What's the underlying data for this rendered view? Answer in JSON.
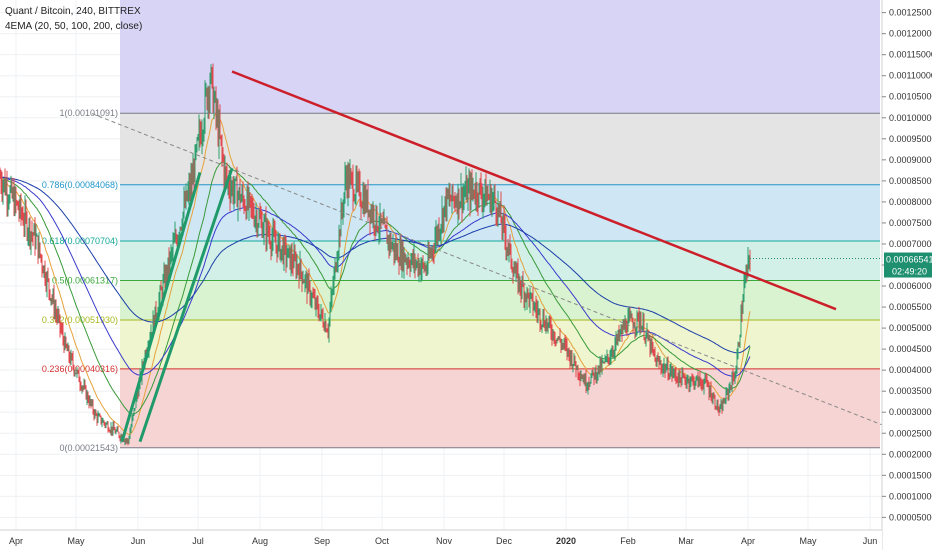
{
  "header": {
    "title": "Quant / Bitcoin, 240, BITTREX",
    "indicator": "4EMA (20, 50, 100, 200, close)"
  },
  "colors": {
    "candle_up": "#2e9e6e",
    "candle_down": "#e0484d",
    "trend_red": "#cc1f2a",
    "trend_green": "#1f9a6a",
    "ema20": "#e6a23c",
    "ema50": "#3a9a3a",
    "ema100": "#3a3acc",
    "ema200": "#1a3fa8",
    "price_tag": "#1e8f6f"
  },
  "price_tag": {
    "value": "0.00066541",
    "countdown": "02:49:20"
  },
  "chart_data": {
    "type": "candlestick",
    "ylim": [
      2e-05,
      0.00128
    ],
    "y_ticks": [
      "0.00125000",
      "0.00120000",
      "0.00115000",
      "0.00110000",
      "0.00105000",
      "0.00100000",
      "0.00095000",
      "0.00090000",
      "0.00085000",
      "0.00080000",
      "0.00075000",
      "0.00070000",
      "0.00065000",
      "0.00060000",
      "0.00055000",
      "0.00050000",
      "0.00045000",
      "0.00040000",
      "0.00035000",
      "0.00030000",
      "0.00025000",
      "0.00020000",
      "0.00015000",
      "0.00010000",
      "0.00005000"
    ],
    "y_tick_values": [
      0.00125,
      0.0012,
      0.00115,
      0.0011,
      0.00105,
      0.001,
      0.00095,
      0.0009,
      0.00085,
      0.0008,
      0.00075,
      0.0007,
      0.00065,
      0.0006,
      0.00055,
      0.0005,
      0.00045,
      0.0004,
      0.00035,
      0.0003,
      0.00025,
      0.0002,
      0.00015,
      0.0001,
      5e-05
    ],
    "x_ticks": [
      "Apr",
      "May",
      "Jun",
      "Jul",
      "Aug",
      "Sep",
      "Oct",
      "Nov",
      "Dec",
      "2020",
      "Feb",
      "Mar",
      "Apr",
      "May",
      "Jun"
    ],
    "x_tick_positions": [
      0,
      30,
      61,
      91,
      122,
      153,
      183,
      214,
      244,
      275,
      306,
      335,
      366,
      396,
      427
    ],
    "x_range_days": [
      -8,
      433
    ],
    "fib_levels": [
      {
        "ratio": "1",
        "value": 0.00101091,
        "label": "1(0.00101091)",
        "color": "#787b86",
        "fill": "#d8d4f5"
      },
      {
        "ratio": "0.786",
        "value": 0.00084068,
        "label": "0.786(0.00084068)",
        "color": "#2196c9",
        "fill": "#e4e4e4"
      },
      {
        "ratio": "0.618",
        "value": 0.00070704,
        "label": "0.618(0.00070704)",
        "color": "#14a89a",
        "fill": "#cfe7f5"
      },
      {
        "ratio": "0.5",
        "value": 0.00061317,
        "label": "0.5(0.00061317)",
        "color": "#3aa83a",
        "fill": "#d2efe8"
      },
      {
        "ratio": "0.382",
        "value": 0.0005193,
        "label": "0.382(0.00051930)",
        "color": "#a6b81d",
        "fill": "#d9f2cf"
      },
      {
        "ratio": "0.236",
        "value": 0.00040316,
        "label": "0.236(0.00040316)",
        "color": "#d32f2f",
        "fill": "#eef5cf"
      },
      {
        "ratio": "0",
        "value": 0.00021543,
        "label": "0(0.00021543)",
        "color": "#787b86",
        "fill": "#f6d4d4"
      }
    ],
    "fib_range_days": [
      52,
      432
    ],
    "key_points": [
      {
        "day": -8,
        "price": 0.00086
      },
      {
        "day": 10,
        "price": 0.00071
      },
      {
        "day": 25,
        "price": 0.00045
      },
      {
        "day": 40,
        "price": 0.00029
      },
      {
        "day": 56,
        "price": 0.00023
      },
      {
        "day": 65,
        "price": 0.00045
      },
      {
        "day": 78,
        "price": 0.00068
      },
      {
        "day": 88,
        "price": 0.00085
      },
      {
        "day": 97,
        "price": 0.0011
      },
      {
        "day": 105,
        "price": 0.00085
      },
      {
        "day": 118,
        "price": 0.00078
      },
      {
        "day": 130,
        "price": 0.0007
      },
      {
        "day": 142,
        "price": 0.00064
      },
      {
        "day": 150,
        "price": 0.00055
      },
      {
        "day": 156,
        "price": 0.0005
      },
      {
        "day": 165,
        "price": 0.00086
      },
      {
        "day": 175,
        "price": 0.0008
      },
      {
        "day": 190,
        "price": 0.00068
      },
      {
        "day": 205,
        "price": 0.00064
      },
      {
        "day": 215,
        "price": 0.0008
      },
      {
        "day": 230,
        "price": 0.00083
      },
      {
        "day": 240,
        "price": 0.0008
      },
      {
        "day": 250,
        "price": 0.00062
      },
      {
        "day": 262,
        "price": 0.00053
      },
      {
        "day": 275,
        "price": 0.00045
      },
      {
        "day": 285,
        "price": 0.00037
      },
      {
        "day": 295,
        "price": 0.00042
      },
      {
        "day": 305,
        "price": 0.00051
      },
      {
        "day": 312,
        "price": 0.00052
      },
      {
        "day": 320,
        "price": 0.00042
      },
      {
        "day": 332,
        "price": 0.00038
      },
      {
        "day": 345,
        "price": 0.00037
      },
      {
        "day": 352,
        "price": 0.0003
      },
      {
        "day": 360,
        "price": 0.0004
      },
      {
        "day": 364,
        "price": 0.0006
      },
      {
        "day": 367,
        "price": 0.00066541
      }
    ],
    "annotations": {
      "red_trendline": [
        {
          "day": 108,
          "price": 0.00111
        },
        {
          "day": 410,
          "price": 0.000545
        }
      ],
      "dashed_trendline": [
        {
          "day": 38,
          "price": 0.00101
        },
        {
          "day": 433,
          "price": 0.00027
        }
      ],
      "green_trendline_1": [
        {
          "day": 53,
          "price": 0.00023
        },
        {
          "day": 92,
          "price": 0.00087
        }
      ],
      "green_trendline_2": [
        {
          "day": 62,
          "price": 0.00023
        },
        {
          "day": 108,
          "price": 0.00088
        }
      ]
    }
  }
}
